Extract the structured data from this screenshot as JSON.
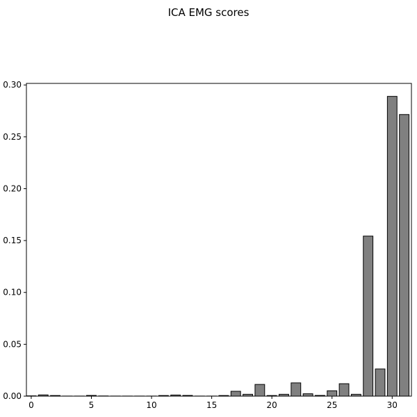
{
  "chart_data": {
    "type": "bar",
    "title": "ICA EMG scores",
    "xlabel": "",
    "ylabel": "",
    "x": [
      0,
      1,
      2,
      3,
      4,
      5,
      6,
      7,
      8,
      9,
      10,
      11,
      12,
      13,
      14,
      15,
      16,
      17,
      18,
      19,
      20,
      21,
      22,
      23,
      24,
      25,
      26,
      27,
      28,
      29,
      30,
      31
    ],
    "values": [
      0.0003,
      0.0012,
      0.0006,
      0.0001,
      0.0001,
      0.0007,
      0.0002,
      0.0001,
      0.0001,
      0.0001,
      0.0001,
      0.0006,
      0.0011,
      0.0007,
      0.0001,
      0.0001,
      0.0006,
      0.0047,
      0.0018,
      0.0113,
      0.0006,
      0.0018,
      0.0128,
      0.0023,
      0.0007,
      0.0052,
      0.012,
      0.0018,
      0.1543,
      0.0262,
      0.289,
      0.2715
    ],
    "xlim": [
      -0.4,
      31.6
    ],
    "ylim": [
      0,
      0.3
    ],
    "xticks": [
      0,
      5,
      10,
      15,
      20,
      25,
      30
    ],
    "yticks": [
      0.0,
      0.05,
      0.1,
      0.15,
      0.2,
      0.25,
      0.3
    ],
    "ytick_labels": [
      "0.00",
      "0.05",
      "0.10",
      "0.15",
      "0.20",
      "0.25",
      "0.30"
    ],
    "grid": false,
    "colors": {
      "bar_fill": "#808080",
      "bar_edge": "#000000",
      "axes": "#000000",
      "background": "#ffffff"
    }
  }
}
